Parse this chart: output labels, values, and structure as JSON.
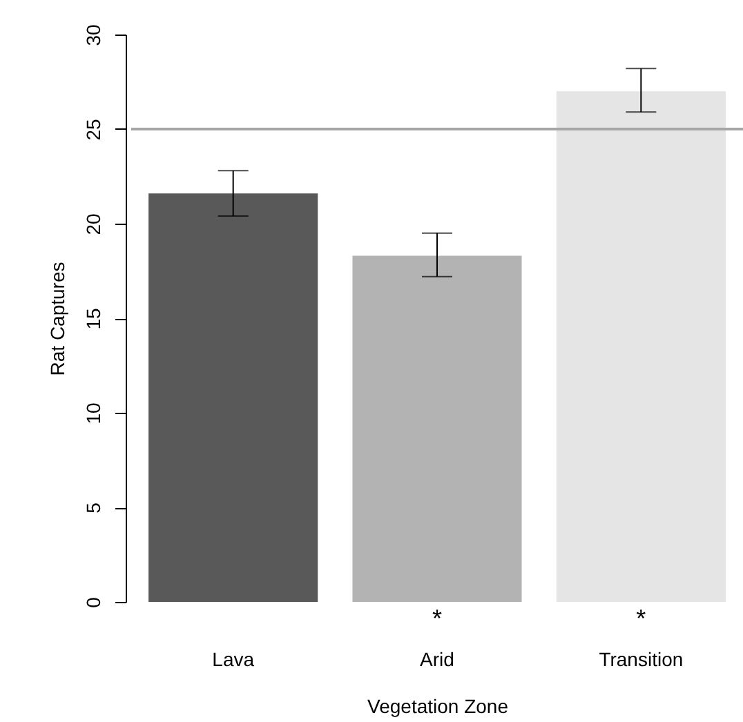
{
  "chart_data": {
    "type": "bar",
    "xlabel": "Vegetation Zone",
    "ylabel": "Rat Captures",
    "categories": [
      "Lava",
      "Arid",
      "Transition"
    ],
    "values": [
      21.6,
      18.3,
      27.0
    ],
    "colors": [
      "#595959",
      "#b3b3b3",
      "#e5e5e5"
    ],
    "errors": [
      [
        20.4,
        22.8
      ],
      [
        17.2,
        19.5
      ],
      [
        25.9,
        28.2
      ]
    ],
    "ylim": [
      0,
      30
    ],
    "yticks": [
      0,
      5,
      10,
      15,
      20,
      25,
      30
    ],
    "ref_lines": [
      {
        "axis": "y",
        "value": 25,
        "color": "#a6a6a6"
      }
    ],
    "annotations": [
      "*",
      "*"
    ],
    "grid": false
  }
}
